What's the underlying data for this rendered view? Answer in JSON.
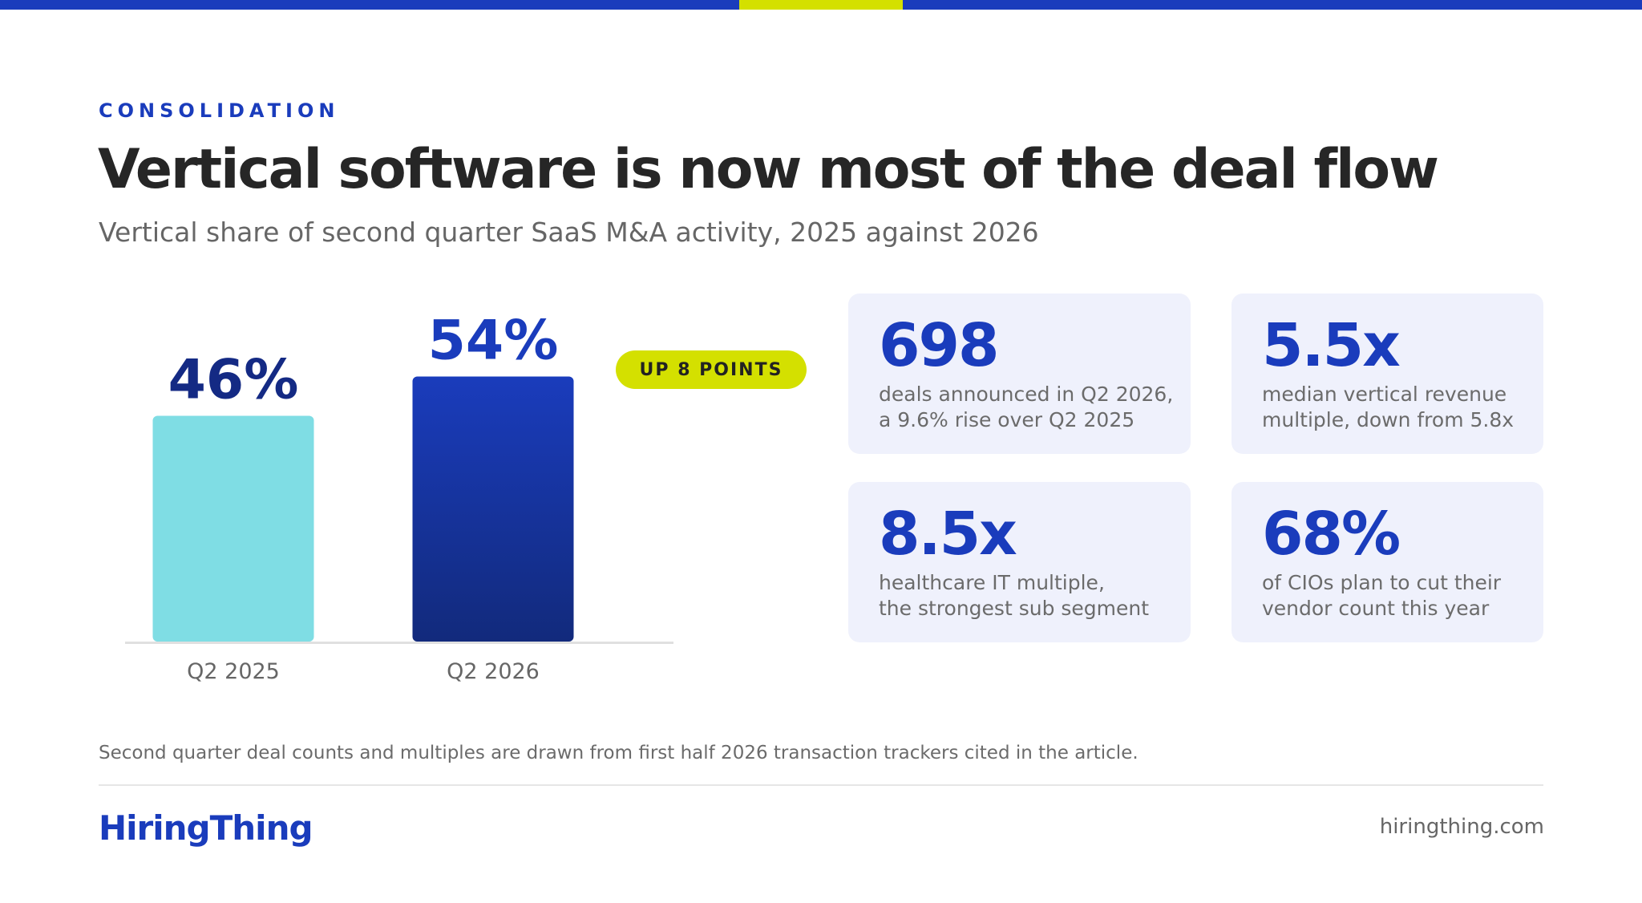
{
  "header": {
    "eyebrow": "CONSOLIDATION",
    "title": "Vertical software is now most of the deal flow",
    "subtitle": "Vertical share of second quarter SaaS M&A activity, 2025 against 2026"
  },
  "chart_data": {
    "type": "bar",
    "categories": [
      "Q2 2025",
      "Q2 2026"
    ],
    "values": [
      46,
      54
    ],
    "value_labels": [
      "46%",
      "54%"
    ],
    "unit": "%",
    "colors": [
      "#7fdde4",
      "#1a3cbc"
    ],
    "label_colors": [
      "#142a84",
      "#1a3cbc"
    ],
    "ylim": [
      0,
      100
    ],
    "annotation": "UP 8 POINTS",
    "grid": false
  },
  "stats": [
    {
      "value": "698",
      "lines": [
        "deals announced in Q2 2026,",
        "a 9.6% rise over Q2 2025"
      ]
    },
    {
      "value": "5.5x",
      "lines": [
        "median vertical revenue",
        "multiple, down from 5.8x"
      ]
    },
    {
      "value": "8.5x",
      "lines": [
        "healthcare IT multiple,",
        "the strongest sub segment"
      ]
    },
    {
      "value": "68%",
      "lines": [
        "of CIOs plan to cut their",
        "vendor count this year"
      ]
    }
  ],
  "footer": {
    "note": "Second quarter deal counts and multiples are drawn from first half 2026 transaction trackers cited in the article.",
    "brand": "HiringThing",
    "site": "hiringthing.com"
  },
  "colors": {
    "brand_blue": "#1a3cbc",
    "accent_yellow": "#d4e000",
    "card_bg": "#eff1fc"
  }
}
